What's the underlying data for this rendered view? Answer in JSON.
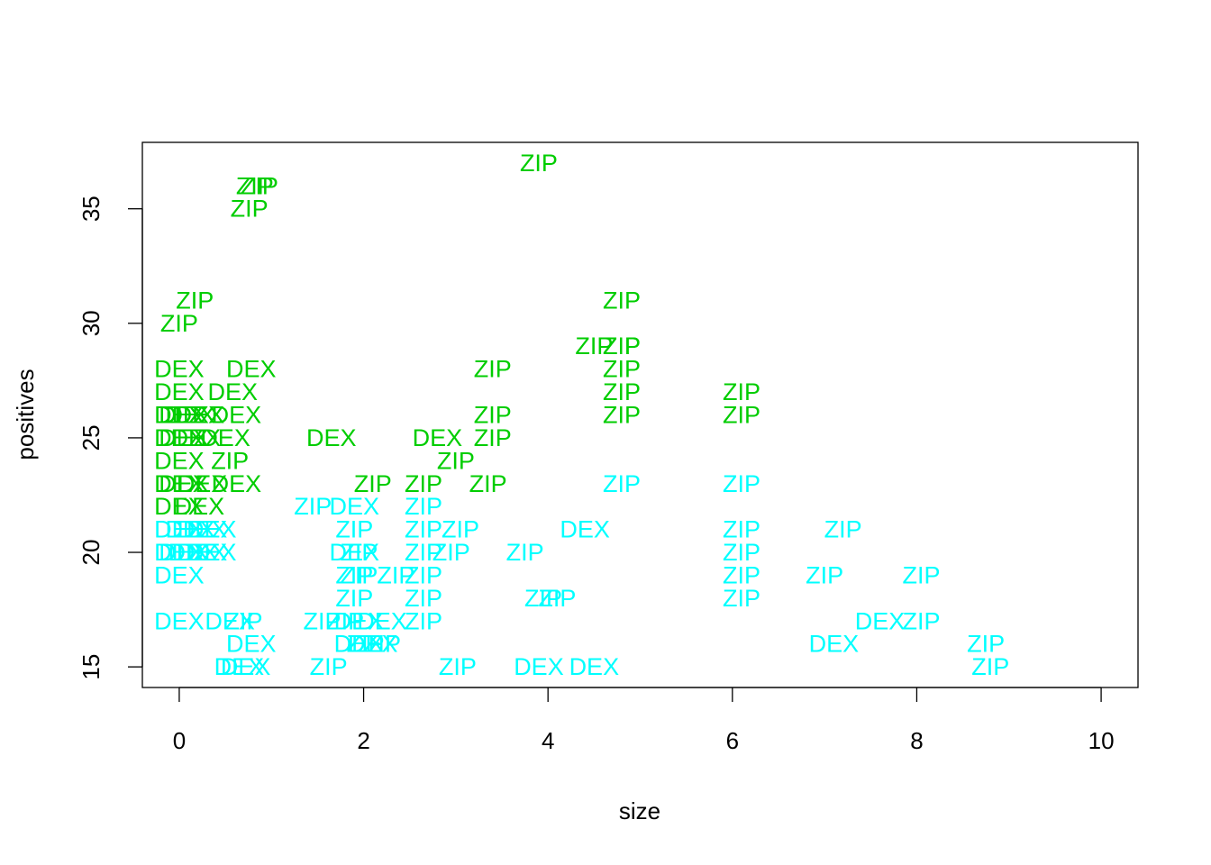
{
  "chart_data": {
    "type": "scatter",
    "marker": "text",
    "xlabel": "size",
    "ylabel": "positives",
    "xlim": [
      -0.4,
      10.4
    ],
    "ylim": [
      14.1,
      37.9
    ],
    "xticks": [
      0,
      2,
      4,
      6,
      8,
      10
    ],
    "yticks": [
      15,
      20,
      25,
      30,
      35
    ],
    "grid": false,
    "colors": {
      "green": "#00cd00",
      "cyan": "#00ffff",
      "axis": "#000000"
    },
    "points": [
      {
        "x": 3.9,
        "y": 37,
        "label": "ZIP",
        "color": "green"
      },
      {
        "x": 0.82,
        "y": 36,
        "label": "ZIP",
        "color": "green"
      },
      {
        "x": 0.87,
        "y": 36,
        "label": "ZIP",
        "color": "green"
      },
      {
        "x": 0.76,
        "y": 35,
        "label": "ZIP",
        "color": "green"
      },
      {
        "x": 0.17,
        "y": 31,
        "label": "ZIP",
        "color": "green"
      },
      {
        "x": 4.8,
        "y": 31,
        "label": "ZIP",
        "color": "green"
      },
      {
        "x": 0.0,
        "y": 30,
        "label": "ZIP",
        "color": "green"
      },
      {
        "x": 4.5,
        "y": 29,
        "label": "ZIP",
        "color": "green"
      },
      {
        "x": 4.8,
        "y": 29,
        "label": "ZIP",
        "color": "green"
      },
      {
        "x": 4.8,
        "y": 29,
        "label": "ZIP",
        "color": "green"
      },
      {
        "x": 0.0,
        "y": 28,
        "label": "DEX",
        "color": "green"
      },
      {
        "x": 0.78,
        "y": 28,
        "label": "DEX",
        "color": "green"
      },
      {
        "x": 3.4,
        "y": 28,
        "label": "ZIP",
        "color": "green"
      },
      {
        "x": 4.8,
        "y": 28,
        "label": "ZIP",
        "color": "green"
      },
      {
        "x": 0.0,
        "y": 27,
        "label": "DEX",
        "color": "green"
      },
      {
        "x": 0.58,
        "y": 27,
        "label": "DEX",
        "color": "green"
      },
      {
        "x": 4.8,
        "y": 27,
        "label": "ZIP",
        "color": "green"
      },
      {
        "x": 6.1,
        "y": 27,
        "label": "ZIP",
        "color": "green"
      },
      {
        "x": 0.0,
        "y": 26,
        "label": "DEX",
        "color": "green"
      },
      {
        "x": 0.05,
        "y": 26,
        "label": "DEX",
        "color": "green"
      },
      {
        "x": 0.12,
        "y": 26,
        "label": "DEX",
        "color": "green"
      },
      {
        "x": 0.22,
        "y": 26,
        "label": "DEX",
        "color": "green"
      },
      {
        "x": 0.62,
        "y": 26,
        "label": "DEX",
        "color": "green"
      },
      {
        "x": 3.4,
        "y": 26,
        "label": "ZIP",
        "color": "green"
      },
      {
        "x": 4.8,
        "y": 26,
        "label": "ZIP",
        "color": "green"
      },
      {
        "x": 6.1,
        "y": 26,
        "label": "ZIP",
        "color": "green"
      },
      {
        "x": 0.0,
        "y": 25,
        "label": "DEX",
        "color": "green"
      },
      {
        "x": 0.05,
        "y": 25,
        "label": "DEX",
        "color": "green"
      },
      {
        "x": 0.18,
        "y": 25,
        "label": "DEX",
        "color": "green"
      },
      {
        "x": 0.5,
        "y": 25,
        "label": "DEX",
        "color": "green"
      },
      {
        "x": 1.65,
        "y": 25,
        "label": "DEX",
        "color": "green"
      },
      {
        "x": 2.8,
        "y": 25,
        "label": "DEX",
        "color": "green"
      },
      {
        "x": 3.4,
        "y": 25,
        "label": "ZIP",
        "color": "green"
      },
      {
        "x": 0.0,
        "y": 24,
        "label": "DEX",
        "color": "green"
      },
      {
        "x": 0.55,
        "y": 24,
        "label": "ZIP",
        "color": "green"
      },
      {
        "x": 3.0,
        "y": 24,
        "label": "ZIP",
        "color": "green"
      },
      {
        "x": 0.0,
        "y": 23,
        "label": "DEX",
        "color": "green"
      },
      {
        "x": 0.05,
        "y": 23,
        "label": "DEX",
        "color": "green"
      },
      {
        "x": 0.25,
        "y": 23,
        "label": "DEX",
        "color": "green"
      },
      {
        "x": 0.62,
        "y": 23,
        "label": "DEX",
        "color": "green"
      },
      {
        "x": 2.1,
        "y": 23,
        "label": "ZIP",
        "color": "green"
      },
      {
        "x": 2.65,
        "y": 23,
        "label": "ZIP",
        "color": "green"
      },
      {
        "x": 3.35,
        "y": 23,
        "label": "ZIP",
        "color": "green"
      },
      {
        "x": 0.0,
        "y": 22,
        "label": "DEX",
        "color": "green"
      },
      {
        "x": 0.22,
        "y": 22,
        "label": "DEX",
        "color": "green"
      },
      {
        "x": 4.8,
        "y": 23,
        "label": "ZIP",
        "color": "cyan"
      },
      {
        "x": 6.1,
        "y": 23,
        "label": "ZIP",
        "color": "cyan"
      },
      {
        "x": 1.45,
        "y": 22,
        "label": "ZIP",
        "color": "cyan"
      },
      {
        "x": 1.9,
        "y": 22,
        "label": "DEX",
        "color": "cyan"
      },
      {
        "x": 2.65,
        "y": 22,
        "label": "ZIP",
        "color": "cyan"
      },
      {
        "x": 0.0,
        "y": 21,
        "label": "DEX",
        "color": "cyan"
      },
      {
        "x": 0.12,
        "y": 21,
        "label": "DEX",
        "color": "cyan"
      },
      {
        "x": 0.25,
        "y": 21,
        "label": "DEX",
        "color": "cyan"
      },
      {
        "x": 0.35,
        "y": 21,
        "label": "DEX",
        "color": "cyan"
      },
      {
        "x": 1.9,
        "y": 21,
        "label": "ZIP",
        "color": "cyan"
      },
      {
        "x": 2.65,
        "y": 21,
        "label": "ZIP",
        "color": "cyan"
      },
      {
        "x": 3.05,
        "y": 21,
        "label": "ZIP",
        "color": "cyan"
      },
      {
        "x": 4.4,
        "y": 21,
        "label": "DEX",
        "color": "cyan"
      },
      {
        "x": 6.1,
        "y": 21,
        "label": "ZIP",
        "color": "cyan"
      },
      {
        "x": 7.2,
        "y": 21,
        "label": "ZIP",
        "color": "cyan"
      },
      {
        "x": 0.0,
        "y": 20,
        "label": "DEX",
        "color": "cyan"
      },
      {
        "x": 0.05,
        "y": 20,
        "label": "DEX",
        "color": "cyan"
      },
      {
        "x": 0.15,
        "y": 20,
        "label": "DEX",
        "color": "cyan"
      },
      {
        "x": 0.25,
        "y": 20,
        "label": "DEX",
        "color": "cyan"
      },
      {
        "x": 0.35,
        "y": 20,
        "label": "DEX",
        "color": "cyan"
      },
      {
        "x": 1.9,
        "y": 20,
        "label": "DEX",
        "color": "cyan"
      },
      {
        "x": 1.95,
        "y": 20,
        "label": "ZIP",
        "color": "cyan"
      },
      {
        "x": 2.65,
        "y": 20,
        "label": "ZIP",
        "color": "cyan"
      },
      {
        "x": 2.95,
        "y": 20,
        "label": "ZIP",
        "color": "cyan"
      },
      {
        "x": 3.75,
        "y": 20,
        "label": "ZIP",
        "color": "cyan"
      },
      {
        "x": 6.1,
        "y": 20,
        "label": "ZIP",
        "color": "cyan"
      },
      {
        "x": 0.0,
        "y": 19,
        "label": "DEX",
        "color": "cyan"
      },
      {
        "x": 1.9,
        "y": 19,
        "label": "ZIP",
        "color": "cyan"
      },
      {
        "x": 1.95,
        "y": 19,
        "label": "ZIP",
        "color": "cyan"
      },
      {
        "x": 2.35,
        "y": 19,
        "label": "ZIP",
        "color": "cyan"
      },
      {
        "x": 2.65,
        "y": 19,
        "label": "ZIP",
        "color": "cyan"
      },
      {
        "x": 6.1,
        "y": 19,
        "label": "ZIP",
        "color": "cyan"
      },
      {
        "x": 7.0,
        "y": 19,
        "label": "ZIP",
        "color": "cyan"
      },
      {
        "x": 8.05,
        "y": 19,
        "label": "ZIP",
        "color": "cyan"
      },
      {
        "x": 1.9,
        "y": 18,
        "label": "ZIP",
        "color": "cyan"
      },
      {
        "x": 2.65,
        "y": 18,
        "label": "ZIP",
        "color": "cyan"
      },
      {
        "x": 3.95,
        "y": 18,
        "label": "ZIP",
        "color": "cyan"
      },
      {
        "x": 4.1,
        "y": 18,
        "label": "ZIP",
        "color": "cyan"
      },
      {
        "x": 6.1,
        "y": 18,
        "label": "ZIP",
        "color": "cyan"
      },
      {
        "x": 0.0,
        "y": 17,
        "label": "DEX",
        "color": "cyan"
      },
      {
        "x": 0.55,
        "y": 17,
        "label": "DEX",
        "color": "cyan"
      },
      {
        "x": 0.7,
        "y": 17,
        "label": "ZIP",
        "color": "cyan"
      },
      {
        "x": 1.55,
        "y": 17,
        "label": "ZIP",
        "color": "cyan"
      },
      {
        "x": 1.8,
        "y": 17,
        "label": "ZIP",
        "color": "cyan"
      },
      {
        "x": 1.95,
        "y": 17,
        "label": "DEX",
        "color": "cyan"
      },
      {
        "x": 2.2,
        "y": 17,
        "label": "DEX",
        "color": "cyan"
      },
      {
        "x": 2.65,
        "y": 17,
        "label": "ZIP",
        "color": "cyan"
      },
      {
        "x": 7.6,
        "y": 17,
        "label": "DEX",
        "color": "cyan"
      },
      {
        "x": 8.05,
        "y": 17,
        "label": "ZIP",
        "color": "cyan"
      },
      {
        "x": 0.78,
        "y": 16,
        "label": "DEX",
        "color": "cyan"
      },
      {
        "x": 1.95,
        "y": 16,
        "label": "DEX",
        "color": "cyan"
      },
      {
        "x": 2.02,
        "y": 16,
        "label": "ZIP",
        "color": "cyan"
      },
      {
        "x": 2.1,
        "y": 16,
        "label": "DEX",
        "color": "cyan"
      },
      {
        "x": 2.2,
        "y": 16,
        "label": "ZIP",
        "color": "cyan"
      },
      {
        "x": 7.1,
        "y": 16,
        "label": "DEX",
        "color": "cyan"
      },
      {
        "x": 8.75,
        "y": 16,
        "label": "ZIP",
        "color": "cyan"
      },
      {
        "x": 0.65,
        "y": 15,
        "label": "DEX",
        "color": "cyan"
      },
      {
        "x": 0.72,
        "y": 15,
        "label": "DEX",
        "color": "cyan"
      },
      {
        "x": 1.62,
        "y": 15,
        "label": "ZIP",
        "color": "cyan"
      },
      {
        "x": 3.02,
        "y": 15,
        "label": "ZIP",
        "color": "cyan"
      },
      {
        "x": 3.9,
        "y": 15,
        "label": "DEX",
        "color": "cyan"
      },
      {
        "x": 4.5,
        "y": 15,
        "label": "DEX",
        "color": "cyan"
      },
      {
        "x": 8.8,
        "y": 15,
        "label": "ZIP",
        "color": "cyan"
      }
    ]
  }
}
